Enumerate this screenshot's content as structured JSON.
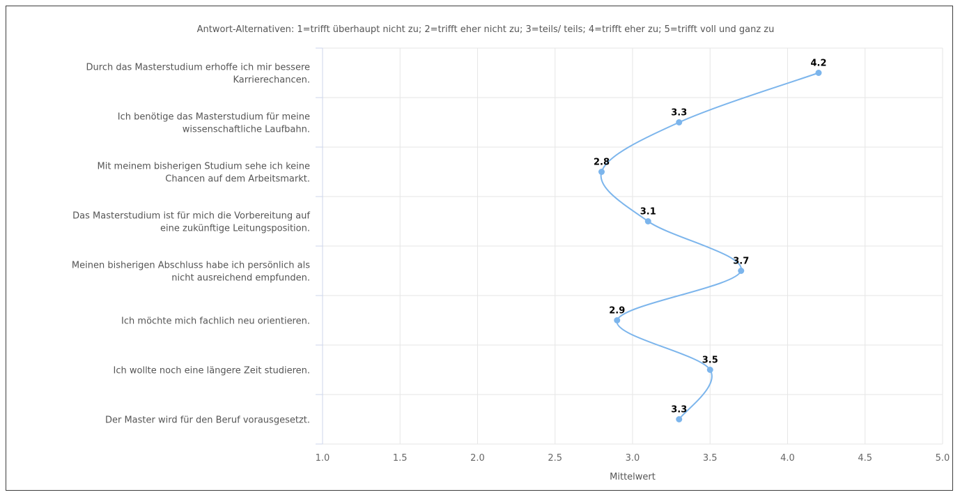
{
  "chart_data": {
    "type": "line",
    "subtitle": "Antwort-Alternativen: 1=trifft überhaupt nicht zu; 2=trifft eher nicht zu; 3=teils/ teils; 4=trifft eher zu; 5=trifft voll und ganz zu",
    "categories": [
      [
        "Durch das Masterstudium erhoffe ich mir bessere",
        "Karrierechancen."
      ],
      [
        "Ich benötige das Masterstudium für meine",
        "wissenschaftliche Laufbahn."
      ],
      [
        "Mit meinem bisherigen Studium sehe ich keine",
        "Chancen auf dem Arbeitsmarkt."
      ],
      [
        "Das Masterstudium ist für mich die Vorbereitung auf",
        "eine zukünftige Leitungsposition."
      ],
      [
        "Meinen bisherigen Abschluss habe ich persönlich als",
        "nicht ausreichend empfunden."
      ],
      [
        "Ich möchte mich fachlich neu orientieren."
      ],
      [
        "Ich wollte noch eine längere Zeit studieren."
      ],
      [
        "Der Master wird für den Beruf vorausgesetzt."
      ]
    ],
    "values": [
      4.2,
      3.3,
      2.8,
      3.1,
      3.7,
      2.9,
      3.5,
      3.3
    ],
    "data_labels": [
      "4.2",
      "3.3",
      "2.8",
      "3.1",
      "3.7",
      "2.9",
      "3.5",
      "3.3"
    ],
    "xlabel": "Mittelwert",
    "xlim": [
      1.0,
      5.0
    ],
    "xticks": [
      "1.0",
      "1.5",
      "2.0",
      "2.5",
      "3.0",
      "3.5",
      "4.0",
      "4.5",
      "5.0"
    ],
    "orientation": "horizontal",
    "grid": true,
    "line_color": "#7cb5ec"
  }
}
